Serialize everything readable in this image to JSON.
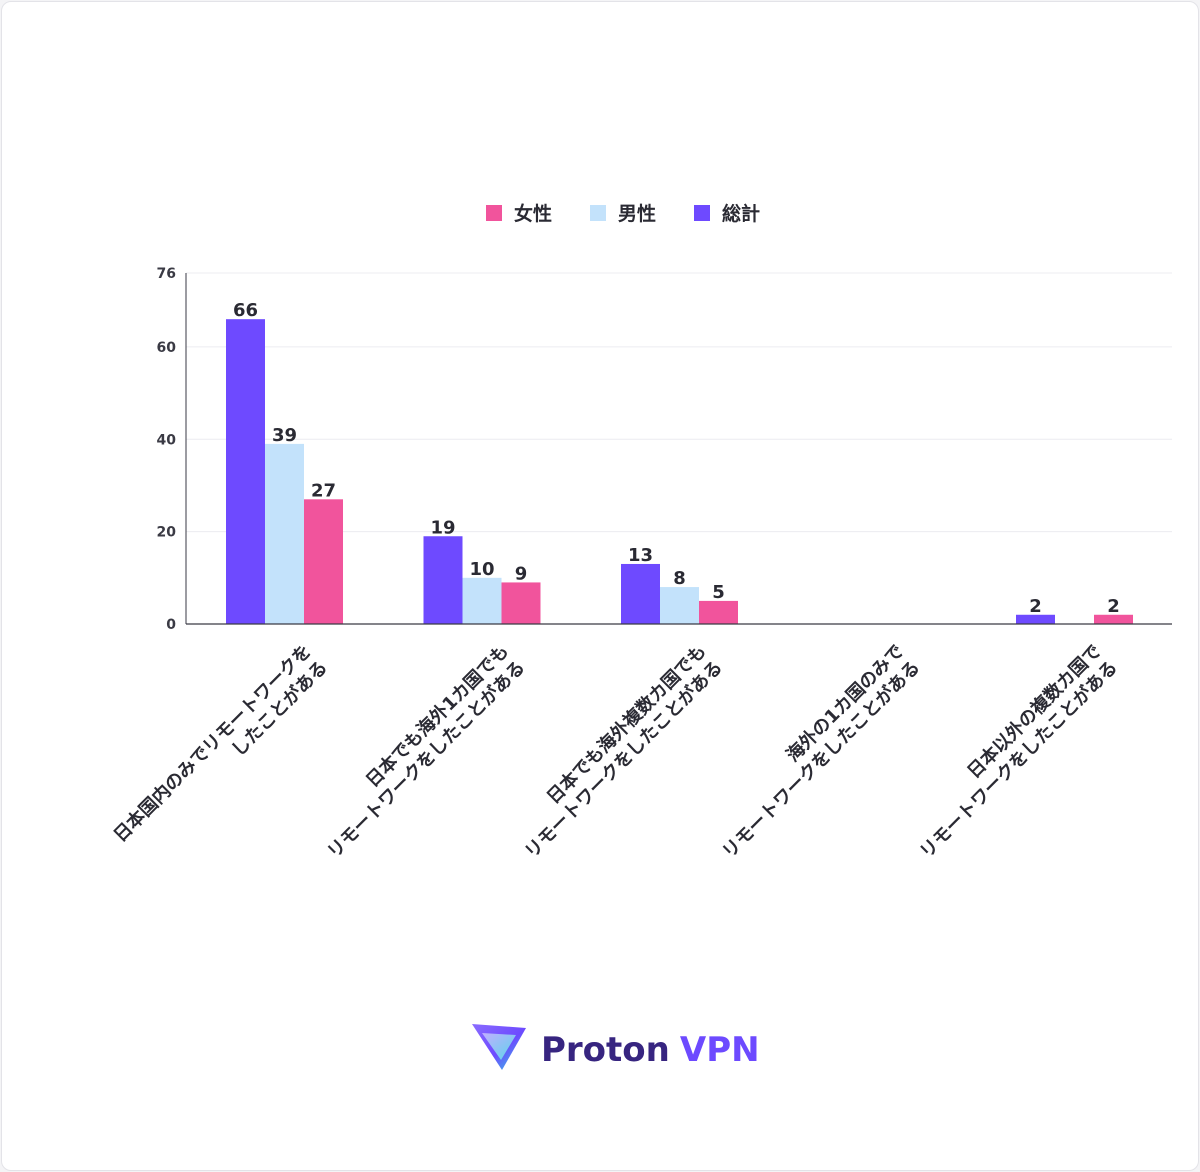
{
  "chart_data": {
    "type": "bar",
    "categories": [
      [
        "日本国内のみでリモートワークを",
        "したことがある"
      ],
      [
        "日本でも海外1カ国でも",
        "リモートワークをしたことがある"
      ],
      [
        "日本でも海外複数カ国でも",
        "リモートワークをしたことがある"
      ],
      [
        "海外の1カ国のみで",
        "リモートワークをしたことがある"
      ],
      [
        "日本以外の複数カ国で",
        "リモートワークをしたことがある"
      ]
    ],
    "series": [
      {
        "name": "総計",
        "color": "#6e4aff",
        "values": [
          66,
          19,
          13,
          null,
          2
        ]
      },
      {
        "name": "男性",
        "color": "#c3e2fb",
        "values": [
          39,
          10,
          8,
          null,
          null
        ]
      },
      {
        "name": "女性",
        "color": "#f1549c",
        "values": [
          27,
          9,
          5,
          null,
          2
        ]
      }
    ],
    "legend_order": [
      "女性",
      "男性",
      "総計"
    ],
    "yticks": [
      0,
      20,
      40,
      60,
      76
    ],
    "ylim": [
      0,
      76
    ],
    "grid": true,
    "legend_position": "top-center"
  },
  "brand": {
    "name": "Proton",
    "product": "VPN",
    "name_color": "#372580",
    "product_color": "#6d4aff",
    "logo_icon": "proton-vpn-shield-icon"
  }
}
